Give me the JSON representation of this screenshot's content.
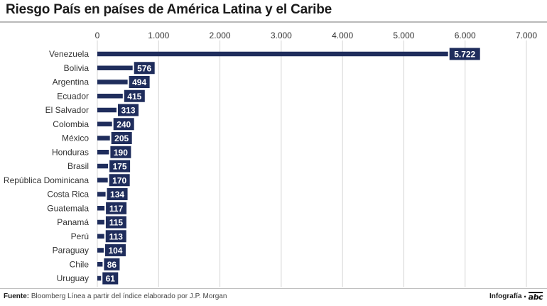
{
  "header": {
    "title": "Riesgo País en países de América Latina y el Caribe"
  },
  "chart_data": {
    "type": "bar",
    "orientation": "horizontal",
    "title": "Riesgo País en países de América Latina y el Caribe",
    "categories": [
      "Venezuela",
      "Bolivia",
      "Argentina",
      "Ecuador",
      "El Salvador",
      "Colombia",
      "México",
      "Honduras",
      "Brasil",
      "República Dominicana",
      "Costa Rica",
      "Guatemala",
      "Panamá",
      "Perú",
      "Paraguay",
      "Chile",
      "Uruguay"
    ],
    "values": [
      5722,
      576,
      494,
      415,
      313,
      240,
      205,
      190,
      175,
      170,
      134,
      117,
      115,
      113,
      104,
      86,
      61
    ],
    "value_labels": [
      "5.722",
      "576",
      "494",
      "415",
      "313",
      "240",
      "205",
      "190",
      "175",
      "170",
      "134",
      "117",
      "115",
      "113",
      "104",
      "86",
      "61"
    ],
    "xlim": [
      0,
      7000
    ],
    "xticks": [
      0,
      1000,
      2000,
      3000,
      4000,
      5000,
      6000,
      7000
    ],
    "xtick_labels": [
      "0",
      "1.000",
      "2.000",
      "3.000",
      "4.000",
      "5.000",
      "6.000",
      "7.000"
    ],
    "xlabel": "",
    "ylabel": "",
    "grid": true,
    "legend": "none",
    "bar_color": "#1f2d5c"
  },
  "footer": {
    "source_label": "Fuente:",
    "source_text": "Bloomberg Línea a partir del índice elaborado por J.P. Morgan",
    "credit": "Infografía",
    "separator": "•",
    "brand": "abc"
  }
}
